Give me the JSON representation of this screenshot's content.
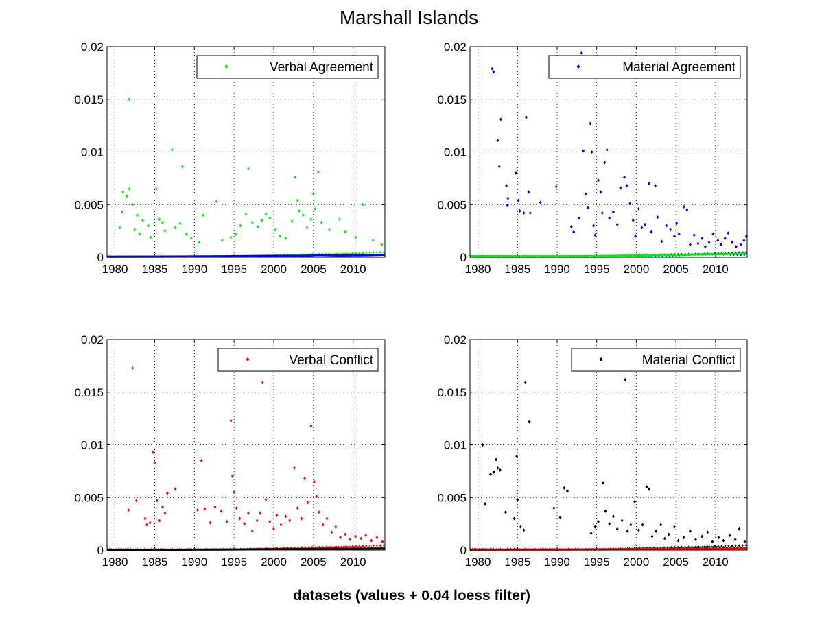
{
  "figure": {
    "title": "Marshall Islands",
    "xlabel": "datasets (values + 0.04 loess filter)"
  },
  "chart_data": [
    {
      "type": "scatter",
      "legend": "Verbal Agreement",
      "legend_position": "top-right",
      "color": "#00ee00",
      "filter_color": "#0000ff",
      "xlim": [
        1979,
        2014
      ],
      "ylim": [
        0,
        0.02
      ],
      "xticks": [
        "1980",
        "1985",
        "1990",
        "1995",
        "2000",
        "2005",
        "2010"
      ],
      "yticks": [
        "0",
        "0.005",
        "0.01",
        "0.015",
        "0.02"
      ],
      "grid": true,
      "points": [
        [
          1981.8,
          0.015
        ],
        [
          1981.0,
          0.0062
        ],
        [
          1981.8,
          0.0065
        ],
        [
          1981.5,
          0.0058
        ],
        [
          1982.2,
          0.005
        ],
        [
          1980.9,
          0.0043
        ],
        [
          1982.8,
          0.004
        ],
        [
          1983.5,
          0.0035
        ],
        [
          1984.2,
          0.003
        ],
        [
          1980.6,
          0.0028
        ],
        [
          1982.5,
          0.0026
        ],
        [
          1983.1,
          0.0022
        ],
        [
          1984.5,
          0.0019
        ],
        [
          1985.2,
          0.0065
        ],
        [
          1985.6,
          0.0036
        ],
        [
          1986.0,
          0.0033
        ],
        [
          1986.3,
          0.0025
        ],
        [
          1987.2,
          0.0102
        ],
        [
          1987.6,
          0.0028
        ],
        [
          1988.5,
          0.0086
        ],
        [
          1988.2,
          0.0032
        ],
        [
          1989.0,
          0.0022
        ],
        [
          1989.6,
          0.0018
        ],
        [
          1991.1,
          0.004
        ],
        [
          1990.6,
          0.0014
        ],
        [
          1992.8,
          0.0053
        ],
        [
          1993.5,
          0.0016
        ],
        [
          1994.6,
          0.0019
        ],
        [
          1995.2,
          0.0022
        ],
        [
          1995.8,
          0.003
        ],
        [
          1996.5,
          0.0041
        ],
        [
          1996.8,
          0.0084
        ],
        [
          1997.3,
          0.0033
        ],
        [
          1998.0,
          0.0029
        ],
        [
          1998.5,
          0.0035
        ],
        [
          1999.0,
          0.0041
        ],
        [
          1999.5,
          0.0037
        ],
        [
          2000.2,
          0.0026
        ],
        [
          2000.8,
          0.002
        ],
        [
          2001.5,
          0.0018
        ],
        [
          2002.3,
          0.0034
        ],
        [
          2002.7,
          0.0076
        ],
        [
          2003.0,
          0.0054
        ],
        [
          2003.2,
          0.0044
        ],
        [
          2003.7,
          0.004
        ],
        [
          2004.2,
          0.0028
        ],
        [
          2004.7,
          0.0036
        ],
        [
          2005.0,
          0.006
        ],
        [
          2005.2,
          0.0046
        ],
        [
          2005.6,
          0.0081
        ],
        [
          2006.0,
          0.0033
        ],
        [
          2007.0,
          0.0026
        ],
        [
          2008.3,
          0.0036
        ],
        [
          2009.0,
          0.0024
        ],
        [
          2010.3,
          0.0019
        ],
        [
          2011.2,
          0.005
        ],
        [
          2012.5,
          0.0016
        ],
        [
          2013.6,
          0.0012
        ]
      ],
      "filter": [
        [
          1979,
          5e-05
        ],
        [
          1985,
          6e-05
        ],
        [
          1990,
          7e-05
        ],
        [
          1995,
          0.0001
        ],
        [
          2000,
          0.00013
        ],
        [
          2004,
          0.00015
        ],
        [
          2005.5,
          0.0002
        ],
        [
          2008,
          0.00016
        ],
        [
          2012,
          0.00019
        ],
        [
          2014,
          0.00023
        ]
      ]
    },
    {
      "type": "scatter",
      "legend": "Material Agreement",
      "legend_position": "top-right",
      "color": "#0000ff",
      "filter_color": "#00ee00",
      "xlim": [
        1979,
        2014
      ],
      "ylim": [
        0,
        0.02
      ],
      "xticks": [
        "1980",
        "1985",
        "1990",
        "1995",
        "2000",
        "2005",
        "2010"
      ],
      "yticks": [
        "0",
        "0.005",
        "0.01",
        "0.015",
        "0.02"
      ],
      "grid": true,
      "points": [
        [
          1981.8,
          0.0179
        ],
        [
          1982.0,
          0.0176
        ],
        [
          1982.5,
          0.0111
        ],
        [
          1982.9,
          0.0131
        ],
        [
          1982.7,
          0.0086
        ],
        [
          1983.6,
          0.0068
        ],
        [
          1983.8,
          0.0056
        ],
        [
          1983.7,
          0.0049
        ],
        [
          1984.8,
          0.008
        ],
        [
          1985.1,
          0.0054
        ],
        [
          1985.3,
          0.0044
        ],
        [
          1985.8,
          0.0042
        ],
        [
          1986.1,
          0.0133
        ],
        [
          1986.4,
          0.0062
        ],
        [
          1986.6,
          0.0042
        ],
        [
          1987.9,
          0.0052
        ],
        [
          1989.9,
          0.0067
        ],
        [
          1991.8,
          0.0029
        ],
        [
          1992.1,
          0.0024
        ],
        [
          1992.8,
          0.0037
        ],
        [
          1993.1,
          0.0194
        ],
        [
          1993.3,
          0.0101
        ],
        [
          1993.6,
          0.006
        ],
        [
          1993.9,
          0.0047
        ],
        [
          1994.2,
          0.0127
        ],
        [
          1994.4,
          0.01
        ],
        [
          1994.6,
          0.003
        ],
        [
          1994.8,
          0.0021
        ],
        [
          1995.2,
          0.0073
        ],
        [
          1995.5,
          0.0062
        ],
        [
          1995.7,
          0.0042
        ],
        [
          1996.0,
          0.009
        ],
        [
          1996.3,
          0.0102
        ],
        [
          1996.6,
          0.0037
        ],
        [
          1997.1,
          0.0043
        ],
        [
          1997.6,
          0.0031
        ],
        [
          1998.0,
          0.0066
        ],
        [
          1998.5,
          0.0076
        ],
        [
          1998.8,
          0.0068
        ],
        [
          1999.2,
          0.0051
        ],
        [
          1999.6,
          0.0035
        ],
        [
          1999.9,
          0.002
        ],
        [
          2000.3,
          0.0046
        ],
        [
          2000.7,
          0.0028
        ],
        [
          2001.1,
          0.0031
        ],
        [
          2001.6,
          0.007
        ],
        [
          2001.9,
          0.0024
        ],
        [
          2002.4,
          0.0068
        ],
        [
          2002.7,
          0.0038
        ],
        [
          2003.2,
          0.0015
        ],
        [
          2003.8,
          0.003
        ],
        [
          2004.3,
          0.0026
        ],
        [
          2004.8,
          0.002
        ],
        [
          2005.1,
          0.0032
        ],
        [
          2005.4,
          0.0022
        ],
        [
          2006.0,
          0.0048
        ],
        [
          2006.4,
          0.0045
        ],
        [
          2006.8,
          0.0012
        ],
        [
          2007.3,
          0.0021
        ],
        [
          2007.8,
          0.0013
        ],
        [
          2008.3,
          0.0018
        ],
        [
          2008.7,
          0.001
        ],
        [
          2009.2,
          0.0014
        ],
        [
          2009.7,
          0.0022
        ],
        [
          2010.3,
          0.0016
        ],
        [
          2010.7,
          0.0012
        ],
        [
          2011.2,
          0.0018
        ],
        [
          2011.6,
          0.0023
        ],
        [
          2012.1,
          0.0014
        ],
        [
          2012.6,
          0.001
        ],
        [
          2013.2,
          0.0012
        ],
        [
          2013.6,
          0.0016
        ],
        [
          2013.9,
          0.002
        ]
      ],
      "filter": [
        [
          1979,
          0.0001
        ],
        [
          1985,
          9e-05
        ],
        [
          1990,
          8e-05
        ],
        [
          1995,
          0.00011
        ],
        [
          2000,
          0.00016
        ],
        [
          2005,
          0.00022
        ],
        [
          2010,
          0.00028
        ],
        [
          2014,
          0.00035
        ]
      ]
    },
    {
      "type": "scatter",
      "legend": "Verbal Conflict",
      "legend_position": "top-right",
      "color": "#ff0000",
      "filter_color": "#000000",
      "xlim": [
        1979,
        2014
      ],
      "ylim": [
        0,
        0.02
      ],
      "xticks": [
        "1980",
        "1985",
        "1990",
        "1995",
        "2000",
        "2005",
        "2010"
      ],
      "yticks": [
        "0",
        "0.005",
        "0.01",
        "0.015",
        "0.02"
      ],
      "grid": true,
      "points": [
        [
          1982.2,
          0.0173
        ],
        [
          1981.7,
          0.0038
        ],
        [
          1982.7,
          0.0047
        ],
        [
          1983.8,
          0.003
        ],
        [
          1984.0,
          0.0024
        ],
        [
          1984.4,
          0.0026
        ],
        [
          1984.8,
          0.0093
        ],
        [
          1985.0,
          0.0083
        ],
        [
          1985.3,
          0.0047
        ],
        [
          1985.6,
          0.0028
        ],
        [
          1986.0,
          0.0041
        ],
        [
          1986.3,
          0.0035
        ],
        [
          1986.6,
          0.0054
        ],
        [
          1987.6,
          0.0058
        ],
        [
          1990.4,
          0.0038
        ],
        [
          1990.9,
          0.0085
        ],
        [
          1991.3,
          0.0039
        ],
        [
          1992.0,
          0.0026
        ],
        [
          1992.6,
          0.0041
        ],
        [
          1993.4,
          0.0037
        ],
        [
          1994.1,
          0.0027
        ],
        [
          1994.6,
          0.0123
        ],
        [
          1994.8,
          0.007
        ],
        [
          1995.0,
          0.0055
        ],
        [
          1995.3,
          0.004
        ],
        [
          1995.7,
          0.003
        ],
        [
          1996.3,
          0.0025
        ],
        [
          1996.8,
          0.0035
        ],
        [
          1997.3,
          0.0018
        ],
        [
          1997.9,
          0.0028
        ],
        [
          1998.3,
          0.0035
        ],
        [
          1998.6,
          0.0159
        ],
        [
          1999.0,
          0.0048
        ],
        [
          1999.5,
          0.0027
        ],
        [
          2000.0,
          0.002
        ],
        [
          2000.4,
          0.0033
        ],
        [
          2000.9,
          0.0024
        ],
        [
          2001.5,
          0.0032
        ],
        [
          2002.0,
          0.0028
        ],
        [
          2002.6,
          0.0078
        ],
        [
          2003.0,
          0.004
        ],
        [
          2003.5,
          0.003
        ],
        [
          2003.9,
          0.0068
        ],
        [
          2004.3,
          0.0045
        ],
        [
          2004.7,
          0.0118
        ],
        [
          2005.1,
          0.0065
        ],
        [
          2005.4,
          0.0051
        ],
        [
          2005.7,
          0.0036
        ],
        [
          2006.2,
          0.0024
        ],
        [
          2006.7,
          0.003
        ],
        [
          2007.3,
          0.0017
        ],
        [
          2007.8,
          0.0022
        ],
        [
          2008.4,
          0.0012
        ],
        [
          2009.0,
          0.0015
        ],
        [
          2009.6,
          0.001
        ],
        [
          2010.3,
          0.0013
        ],
        [
          2011.0,
          0.0011
        ],
        [
          2011.6,
          0.0014
        ],
        [
          2012.3,
          0.0009
        ],
        [
          2013.0,
          0.0012
        ],
        [
          2013.7,
          0.0008
        ]
      ],
      "filter": [
        [
          1979,
          2e-05
        ],
        [
          1985,
          3e-05
        ],
        [
          1990,
          4e-05
        ],
        [
          1995,
          6e-05
        ],
        [
          2000,
          8e-05
        ],
        [
          2005,
          0.00011
        ],
        [
          2010,
          0.00013
        ],
        [
          2014,
          0.00015
        ]
      ]
    },
    {
      "type": "scatter",
      "legend": "Material Conflict",
      "legend_position": "top-right",
      "color": "#000000",
      "filter_color": "#ff0000",
      "xlim": [
        1979,
        2014
      ],
      "ylim": [
        0,
        0.02
      ],
      "xticks": [
        "1980",
        "1985",
        "1990",
        "1995",
        "2000",
        "2005",
        "2010"
      ],
      "yticks": [
        "0",
        "0.005",
        "0.01",
        "0.015",
        "0.02"
      ],
      "grid": true,
      "points": [
        [
          1980.6,
          0.01
        ],
        [
          1980.9,
          0.0044
        ],
        [
          1981.6,
          0.0072
        ],
        [
          1982.0,
          0.0074
        ],
        [
          1982.3,
          0.0086
        ],
        [
          1982.5,
          0.0078
        ],
        [
          1982.8,
          0.0076
        ],
        [
          1983.5,
          0.0036
        ],
        [
          1984.6,
          0.003
        ],
        [
          1984.9,
          0.0089
        ],
        [
          1985.0,
          0.0048
        ],
        [
          1985.4,
          0.0022
        ],
        [
          1985.8,
          0.0019
        ],
        [
          1986.0,
          0.0159
        ],
        [
          1986.5,
          0.0122
        ],
        [
          1989.6,
          0.004
        ],
        [
          1990.4,
          0.0031
        ],
        [
          1990.9,
          0.0059
        ],
        [
          1991.3,
          0.0056
        ],
        [
          1994.3,
          0.0016
        ],
        [
          1994.8,
          0.0022
        ],
        [
          1995.2,
          0.0027
        ],
        [
          1995.8,
          0.0064
        ],
        [
          1996.1,
          0.0037
        ],
        [
          1996.6,
          0.0025
        ],
        [
          1997.1,
          0.0032
        ],
        [
          1997.6,
          0.002
        ],
        [
          1998.2,
          0.0028
        ],
        [
          1998.6,
          0.0162
        ],
        [
          1998.9,
          0.0018
        ],
        [
          1999.3,
          0.0024
        ],
        [
          1999.8,
          0.0046
        ],
        [
          2000.3,
          0.0019
        ],
        [
          2000.8,
          0.0024
        ],
        [
          2001.3,
          0.006
        ],
        [
          2001.6,
          0.0058
        ],
        [
          2002.0,
          0.0013
        ],
        [
          2002.5,
          0.0018
        ],
        [
          2003.1,
          0.0024
        ],
        [
          2003.6,
          0.0011
        ],
        [
          2004.1,
          0.0015
        ],
        [
          2004.8,
          0.0022
        ],
        [
          2005.3,
          0.0009
        ],
        [
          2006.0,
          0.0012
        ],
        [
          2006.8,
          0.0018
        ],
        [
          2007.5,
          0.001
        ],
        [
          2008.3,
          0.0013
        ],
        [
          2009.0,
          0.0017
        ],
        [
          2009.6,
          0.0008
        ],
        [
          2010.4,
          0.0012
        ],
        [
          2011.0,
          0.0009
        ],
        [
          2011.8,
          0.0014
        ],
        [
          2012.5,
          0.001
        ],
        [
          2013.0,
          0.002
        ],
        [
          2013.7,
          0.0008
        ]
      ],
      "filter": [
        [
          1979,
          4e-05
        ],
        [
          1985,
          5e-05
        ],
        [
          1990,
          5e-05
        ],
        [
          1995,
          7e-05
        ],
        [
          2000,
          9e-05
        ],
        [
          2005,
          0.00011
        ],
        [
          2010,
          0.00013
        ],
        [
          2014,
          0.00015
        ]
      ]
    }
  ]
}
